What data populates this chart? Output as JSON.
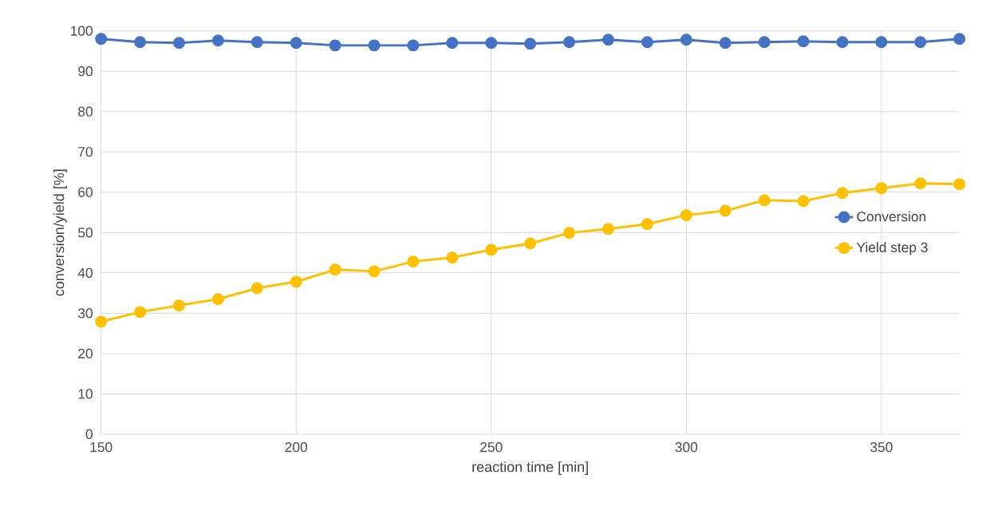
{
  "chart_data": {
    "type": "line",
    "xlabel": "reaction time [min]",
    "ylabel": "conversion/yield [%]",
    "x": [
      150,
      160,
      170,
      180,
      190,
      200,
      210,
      220,
      230,
      240,
      250,
      260,
      270,
      280,
      290,
      300,
      310,
      320,
      330,
      340,
      350,
      360,
      370
    ],
    "series": [
      {
        "name": "Conversion",
        "color": "#4472c4",
        "values": [
          98.0,
          97.2,
          97.0,
          97.6,
          97.2,
          97.0,
          96.4,
          96.4,
          96.4,
          97.0,
          97.0,
          96.8,
          97.2,
          97.8,
          97.2,
          97.8,
          97.0,
          97.2,
          97.4,
          97.2,
          97.2,
          97.2,
          98.0
        ]
      },
      {
        "name": "Yield step 3",
        "color": "#ffc000",
        "values": [
          27.9,
          30.3,
          31.9,
          33.5,
          36.2,
          37.8,
          40.8,
          40.4,
          42.8,
          43.8,
          45.7,
          47.3,
          49.9,
          50.9,
          52.1,
          54.3,
          55.4,
          58.0,
          57.8,
          59.8,
          61.0,
          62.2,
          62.0
        ]
      }
    ],
    "xlim": [
      150,
      370
    ],
    "xticks": [
      150,
      200,
      250,
      300,
      350
    ],
    "ylim": [
      0,
      100
    ],
    "yticks": [
      0,
      10,
      20,
      30,
      40,
      50,
      60,
      70,
      80,
      90,
      100
    ],
    "grid": true,
    "legend": "right",
    "marker": "circle",
    "line_style": "solid"
  }
}
